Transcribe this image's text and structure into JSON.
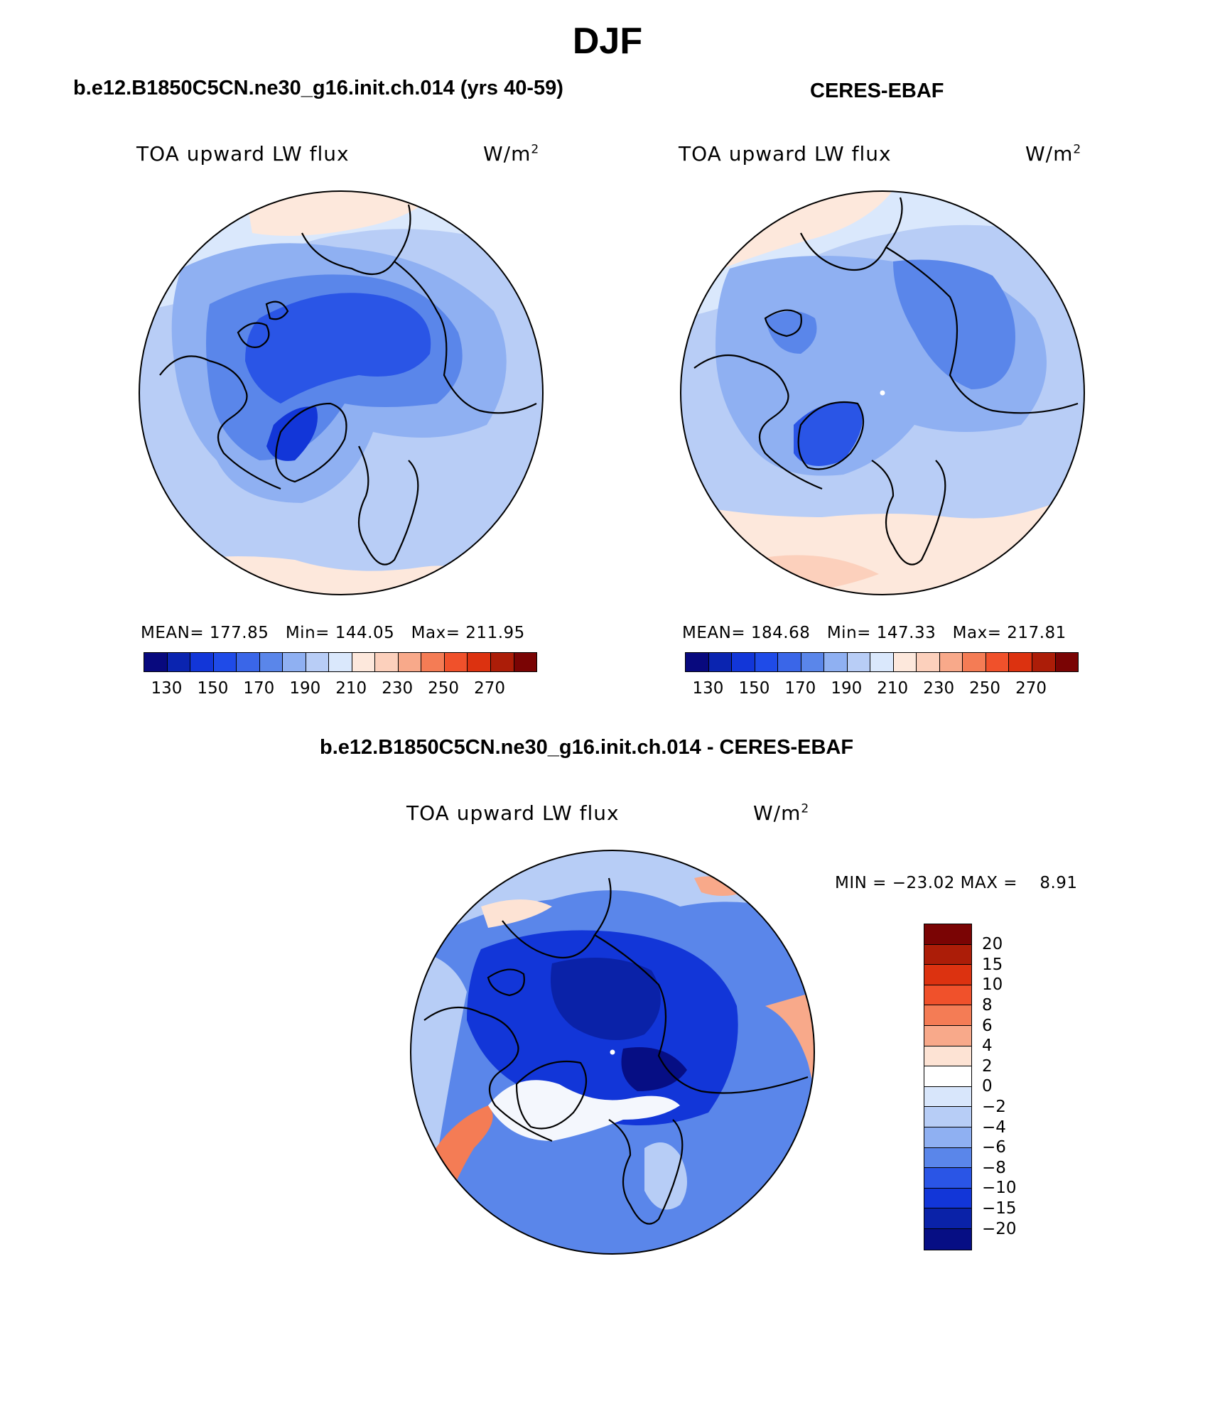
{
  "title": "DJF",
  "panels": [
    {
      "subtitle": "b.e12.B1850C5CN.ne30_g16.init.ch.014 (yrs 40-59)",
      "variable": "TOA upward LW flux",
      "units": "W/m",
      "units_sup": "2",
      "stats": {
        "mean_label": "MEAN=",
        "mean": "177.85",
        "min_label": "Min=",
        "min": "144.05",
        "max_label": "Max=",
        "max": "211.95"
      }
    },
    {
      "subtitle": "CERES-EBAF",
      "variable": "TOA upward LW flux",
      "units": "W/m",
      "units_sup": "2",
      "stats": {
        "mean_label": "MEAN=",
        "mean": "184.68",
        "min_label": "Min=",
        "min": "147.33",
        "max_label": "Max=",
        "max": "217.81"
      }
    },
    {
      "subtitle": "b.e12.B1850C5CN.ne30_g16.init.ch.014 - CERES-EBAF",
      "variable": "TOA upward LW flux",
      "units": "W/m",
      "units_sup": "2",
      "minmax": "MIN = −23.02 MAX =    8.91"
    }
  ],
  "colorbar_main": {
    "colors": [
      "#08097e",
      "#0a24b0",
      "#1236d8",
      "#1f4be8",
      "#3a66e8",
      "#5a86ea",
      "#8fb0f2",
      "#b8cdf6",
      "#dae8fc",
      "#fde8dc",
      "#fcd0bc",
      "#f8a98a",
      "#f47c55",
      "#f0512b",
      "#dc3210",
      "#ac1d08",
      "#7a0404"
    ],
    "tick_labels": [
      "130",
      "150",
      "170",
      "190",
      "210",
      "230",
      "250",
      "270"
    ]
  },
  "colorbar_diff": {
    "colors": [
      "#7a0404",
      "#ac1d08",
      "#dc3210",
      "#f0512b",
      "#f47c55",
      "#f8a98a",
      "#fde3d4",
      "#ffffff",
      "#d8e6fb",
      "#b7cdf6",
      "#8fb0f2",
      "#5a86ea",
      "#2a55e6",
      "#1236d8",
      "#0a22a8",
      "#060e84"
    ],
    "labels": [
      "20",
      "15",
      "10",
      "8",
      "6",
      "4",
      "2",
      "0",
      "−2",
      "−4",
      "−6",
      "−8",
      "−10",
      "−15",
      "−20"
    ]
  },
  "chart_data": [
    {
      "type": "heatmap",
      "title": "b.e12.B1850C5CN.ne30_g16.init.ch.014 (yrs 40-59)",
      "variable": "TOA upward LW flux",
      "units": "W/m2",
      "projection": "north polar stereographic",
      "mean": 177.85,
      "min": 144.05,
      "max": 211.95,
      "levels": [
        130,
        140,
        150,
        160,
        170,
        180,
        190,
        200,
        210,
        220,
        230,
        240,
        250,
        260,
        270,
        280
      ]
    },
    {
      "type": "heatmap",
      "title": "CERES-EBAF",
      "variable": "TOA upward LW flux",
      "units": "W/m2",
      "projection": "north polar stereographic",
      "mean": 184.68,
      "min": 147.33,
      "max": 217.81,
      "levels": [
        130,
        140,
        150,
        160,
        170,
        180,
        190,
        200,
        210,
        220,
        230,
        240,
        250,
        260,
        270,
        280
      ]
    },
    {
      "type": "heatmap",
      "title": "b.e12.B1850C5CN.ne30_g16.init.ch.014 - CERES-EBAF",
      "variable": "TOA upward LW flux",
      "units": "W/m2",
      "projection": "north polar stereographic",
      "min": -23.02,
      "max": 8.91,
      "levels": [
        -20,
        -15,
        -10,
        -8,
        -6,
        -4,
        -2,
        0,
        2,
        4,
        6,
        8,
        10,
        15,
        20
      ]
    }
  ]
}
